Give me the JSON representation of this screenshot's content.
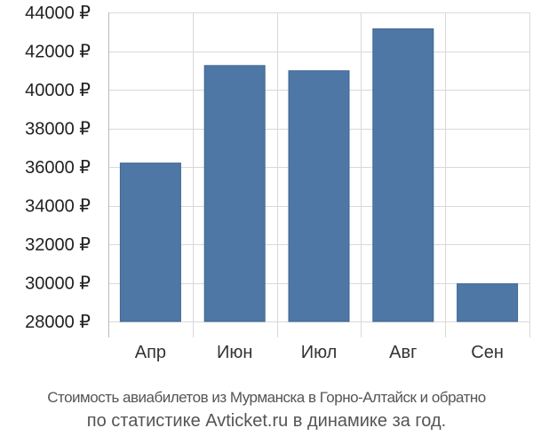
{
  "chart_data": {
    "type": "bar",
    "categories": [
      "Апр",
      "Июн",
      "Июл",
      "Авг",
      "Сен"
    ],
    "values": [
      36200,
      41250,
      40980,
      43150,
      29950
    ],
    "ylim": [
      28000,
      44000
    ],
    "y_ticks": [
      28000,
      30000,
      32000,
      34000,
      36000,
      38000,
      40000,
      42000,
      44000
    ],
    "y_tick_labels": [
      "28000 ₽",
      "30000 ₽",
      "32000 ₽",
      "34000 ₽",
      "36000 ₽",
      "38000 ₽",
      "40000 ₽",
      "42000 ₽",
      "44000 ₽"
    ],
    "grid": true,
    "bar_color": "#4e77a6"
  },
  "caption": {
    "line1": "Стоимость авиабилетов из Мурманска в Горно-Алтайск и обратно",
    "line2": "по статистике Avticket.ru в динамике за год."
  }
}
